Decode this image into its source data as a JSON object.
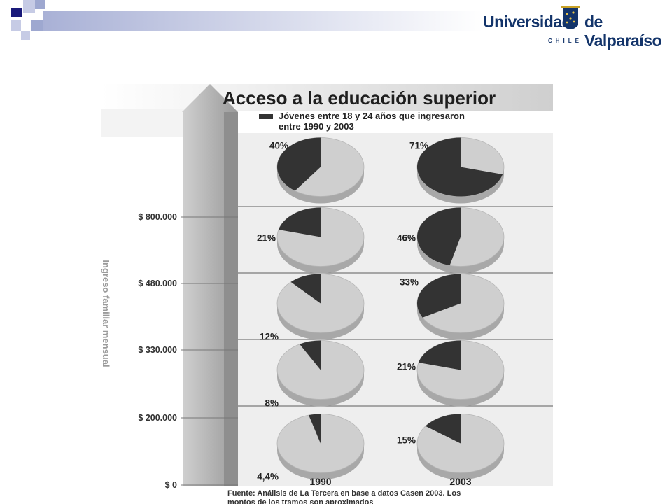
{
  "header": {
    "logo_word1": "Universidad",
    "logo_word2": "de Valparaíso",
    "logo_country": "CHILE",
    "brand_color": "#13346a",
    "deco_colors": [
      "#1a1a7a",
      "#9ea8d0",
      "#c6cbe5"
    ]
  },
  "chart_data": {
    "type": "pie",
    "title": "Acceso a la educación superior",
    "legend": [
      "Jóvenes entre 18 y 24 años que ingresaron",
      "entre 1990 y 2003"
    ],
    "ylabel": "Ingreso familiar mensual",
    "y_ticks": [
      "$ 800.000",
      "$ 480.000",
      "$ 330.000",
      "$ 200.000",
      "$ 0"
    ],
    "columns": [
      "1990",
      "2003"
    ],
    "series": [
      {
        "name": "1990",
        "values": [
          40,
          21,
          12,
          8,
          4.4
        ],
        "labels": [
          "40%",
          "21%",
          "12%",
          "8%",
          "4,4%"
        ]
      },
      {
        "name": "2003",
        "values": [
          71,
          46,
          33,
          21,
          15
        ],
        "labels": [
          "71%",
          "46%",
          "33%",
          "21%",
          "15%"
        ]
      }
    ],
    "source": [
      "Fuente: Análisis de La Tercera en base a datos Casen 2003. Los",
      "montos de los tramos son aproximados"
    ],
    "colors": {
      "filled": "#333333",
      "rest": "#cfcfcf"
    }
  }
}
